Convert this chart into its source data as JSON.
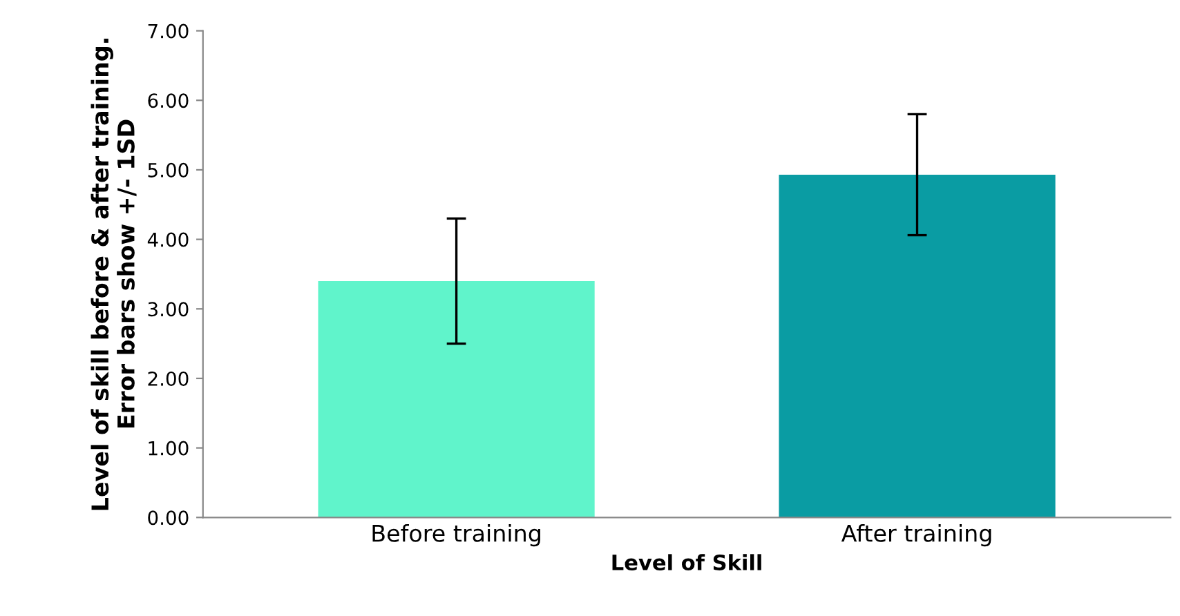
{
  "chart_data": {
    "type": "bar",
    "categories": [
      "Before training",
      "After training"
    ],
    "values": [
      3.4,
      4.93
    ],
    "errors": [
      0.9,
      0.87
    ],
    "colors": [
      "#60f4cb",
      "#0a9ca3"
    ],
    "xlabel": "Level of Skill",
    "ylabel": "Level of skill before & after training.\nError bars show +/- 1SD",
    "ylim": [
      0,
      7
    ],
    "yticks": [
      {
        "value": 0,
        "label": "0.00"
      },
      {
        "value": 1,
        "label": "1.00"
      },
      {
        "value": 2,
        "label": "2.00"
      },
      {
        "value": 3,
        "label": "3.00"
      },
      {
        "value": 4,
        "label": "4.00"
      },
      {
        "value": 5,
        "label": "5.00"
      },
      {
        "value": 6,
        "label": "6.00"
      },
      {
        "value": 7,
        "label": "7.00"
      }
    ],
    "grid": false
  }
}
